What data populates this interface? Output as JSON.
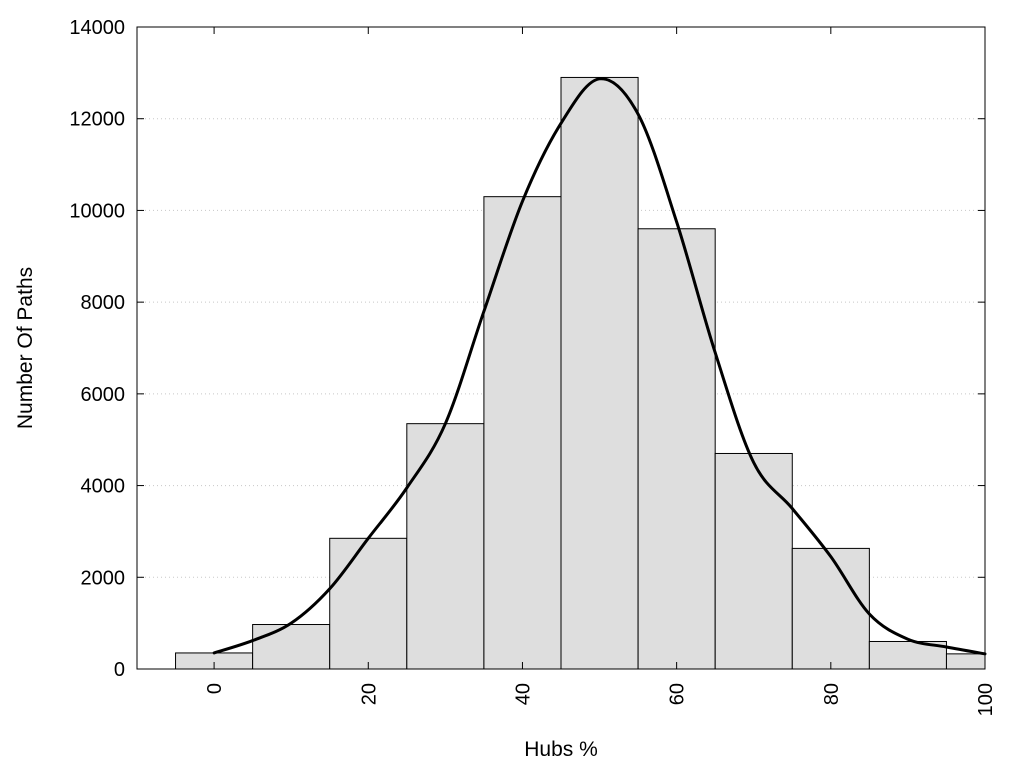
{
  "chart_data": {
    "type": "bar",
    "title": "",
    "xlabel": "Hubs %",
    "ylabel": "Number Of Paths",
    "xlim": [
      -10,
      100
    ],
    "ylim": [
      0,
      14000
    ],
    "x_ticks": [
      "0",
      "20",
      "40",
      "60",
      "80",
      "100"
    ],
    "y_ticks": [
      "0",
      "2000",
      "4000",
      "6000",
      "8000",
      "10000",
      "12000",
      "14000"
    ],
    "grid": "horizontal dotted",
    "bin_width": 10,
    "bins": [
      {
        "center": 0,
        "value": 350
      },
      {
        "center": 10,
        "value": 970
      },
      {
        "center": 20,
        "value": 2850
      },
      {
        "center": 30,
        "value": 5350
      },
      {
        "center": 40,
        "value": 10300
      },
      {
        "center": 50,
        "value": 12900
      },
      {
        "center": 60,
        "value": 9600
      },
      {
        "center": 70,
        "value": 4700
      },
      {
        "center": 80,
        "value": 2630
      },
      {
        "center": 90,
        "value": 600
      },
      {
        "center": 100,
        "value": 330
      }
    ],
    "curve": {
      "type": "line",
      "x": [
        0,
        5,
        10,
        15,
        20,
        25,
        30,
        35,
        40,
        45,
        50,
        55,
        60,
        65,
        70,
        75,
        80,
        85,
        90,
        95,
        100
      ],
      "y": [
        350,
        620,
        1000,
        1750,
        2850,
        3950,
        5350,
        7800,
        10200,
        11900,
        12870,
        12100,
        9750,
        6900,
        4500,
        3500,
        2450,
        1200,
        650,
        480,
        330
      ]
    }
  }
}
